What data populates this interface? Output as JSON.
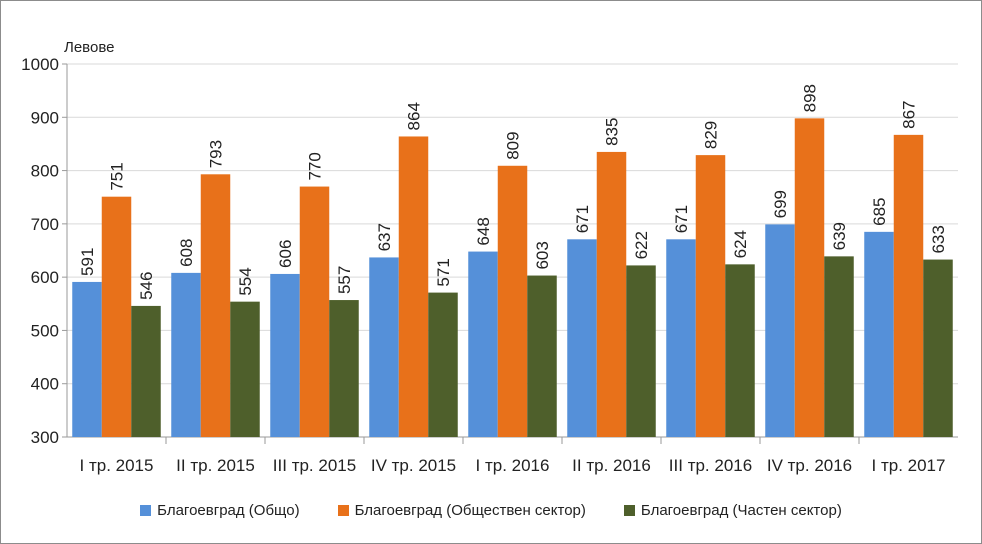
{
  "chart_data": {
    "type": "bar",
    "ylabel": "Левове",
    "ylim": [
      300,
      1000
    ],
    "yticks": [
      300,
      400,
      500,
      600,
      700,
      800,
      900,
      1000
    ],
    "grid": true,
    "legend_position": "bottom",
    "categories": [
      "I тр. 2015",
      "II тр. 2015",
      "III тр. 2015",
      "IV тр. 2015",
      "I тр. 2016",
      "II тр. 2016",
      "III тр. 2016",
      "IV тр. 2016",
      "I тр. 2017"
    ],
    "series": [
      {
        "name": "Благоевград (Общо)",
        "color": "#5590d9",
        "values": [
          591,
          608,
          606,
          637,
          648,
          671,
          671,
          699,
          685
        ]
      },
      {
        "name": "Благоевград (Обществен сектор)",
        "color": "#e8711a",
        "values": [
          751,
          793,
          770,
          864,
          809,
          835,
          829,
          898,
          867
        ]
      },
      {
        "name": "Благоевград (Частен сектор)",
        "color": "#4e5f2b",
        "values": [
          546,
          554,
          557,
          571,
          603,
          622,
          624,
          639,
          633
        ]
      }
    ]
  }
}
